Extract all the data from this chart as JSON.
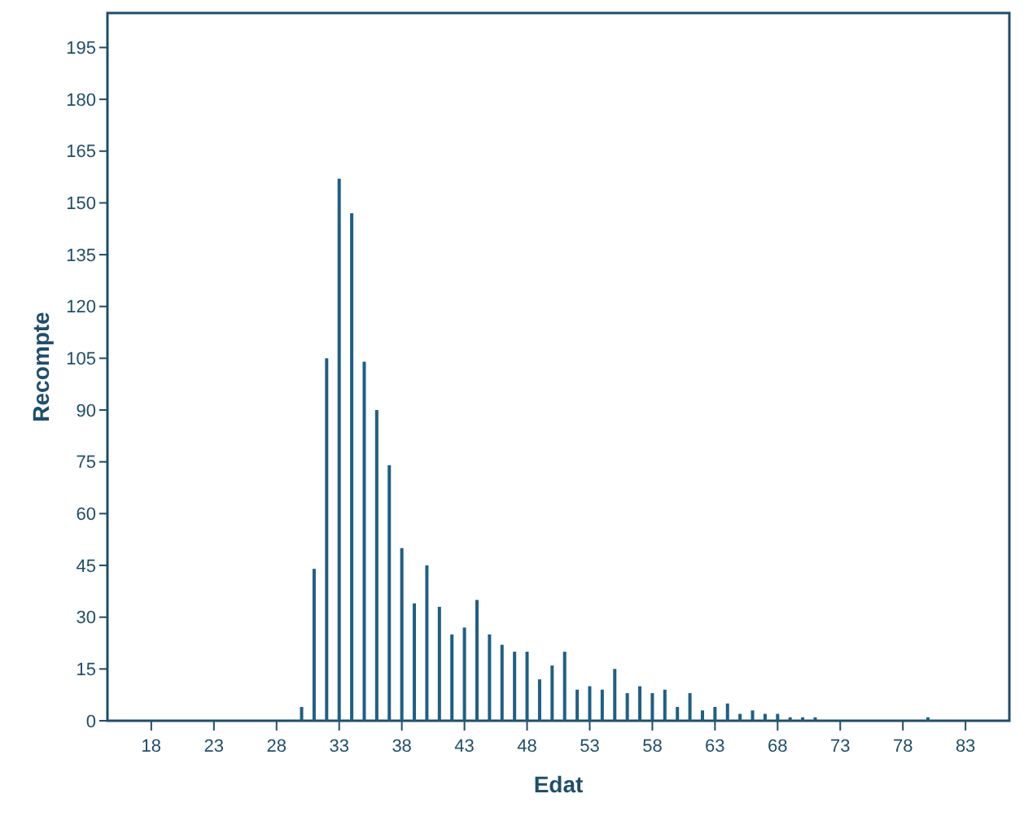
{
  "chart_data": {
    "type": "bar",
    "xlabel": "Edat",
    "ylabel": "Recompte",
    "color": "#1f5f85",
    "x": [
      30,
      31,
      32,
      33,
      34,
      35,
      36,
      37,
      38,
      39,
      40,
      41,
      42,
      43,
      44,
      45,
      46,
      47,
      48,
      49,
      50,
      51,
      52,
      53,
      54,
      55,
      56,
      57,
      58,
      59,
      60,
      61,
      62,
      63,
      64,
      65,
      66,
      67,
      68,
      69,
      70,
      71,
      80
    ],
    "values": [
      4,
      44,
      105,
      157,
      147,
      104,
      90,
      74,
      50,
      34,
      45,
      33,
      25,
      27,
      35,
      25,
      22,
      20,
      20,
      12,
      16,
      20,
      9,
      10,
      9,
      15,
      8,
      10,
      8,
      9,
      4,
      8,
      3,
      4,
      5,
      2,
      3,
      2,
      2,
      1,
      1,
      1,
      1
    ],
    "xlim": [
      14.5,
      86.5
    ],
    "xticks": [
      18,
      23,
      28,
      33,
      38,
      43,
      48,
      53,
      58,
      63,
      68,
      73,
      78,
      83
    ],
    "ylim": [
      0,
      205
    ],
    "yticks": [
      0,
      15,
      30,
      45,
      60,
      75,
      90,
      105,
      120,
      135,
      150,
      165,
      180,
      195
    ],
    "grid": false
  }
}
